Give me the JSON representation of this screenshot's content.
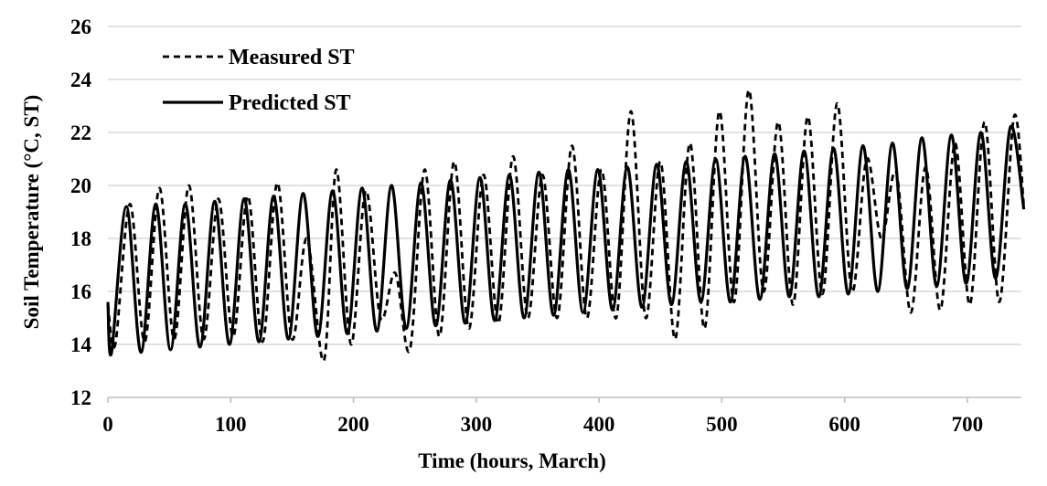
{
  "chart_data": {
    "type": "line",
    "title": "",
    "xlabel": "Time (hours, March)",
    "ylabel": "Soil Temperature (°C, ST)",
    "xlim": [
      0,
      744
    ],
    "ylim": [
      12,
      26
    ],
    "xticks": [
      "0",
      "100",
      "200",
      "300",
      "400",
      "500",
      "600",
      "700"
    ],
    "yticks": [
      "12",
      "14",
      "16",
      "18",
      "20",
      "22",
      "24",
      "26"
    ],
    "grid": "horizontal",
    "legend_position": "top-left",
    "series": [
      {
        "name": "Measured ST",
        "style": "dashed",
        "color": "#000000",
        "points": [
          [
            0,
            15.5
          ],
          [
            6,
            14.0
          ],
          [
            18,
            19.3
          ],
          [
            30,
            14.1
          ],
          [
            42,
            19.9
          ],
          [
            54,
            14.2
          ],
          [
            66,
            20.0
          ],
          [
            78,
            14.2
          ],
          [
            90,
            19.5
          ],
          [
            102,
            14.3
          ],
          [
            114,
            19.6
          ],
          [
            126,
            14.1
          ],
          [
            138,
            20.1
          ],
          [
            150,
            14.2
          ],
          [
            162,
            18.0
          ],
          [
            176,
            13.4
          ],
          [
            186,
            20.6
          ],
          [
            198,
            14.0
          ],
          [
            210,
            19.8
          ],
          [
            222,
            15.0
          ],
          [
            234,
            16.7
          ],
          [
            246,
            13.8
          ],
          [
            258,
            20.6
          ],
          [
            270,
            14.3
          ],
          [
            282,
            20.9
          ],
          [
            294,
            14.6
          ],
          [
            306,
            20.4
          ],
          [
            318,
            14.8
          ],
          [
            330,
            21.1
          ],
          [
            342,
            15.0
          ],
          [
            354,
            20.4
          ],
          [
            366,
            15.0
          ],
          [
            378,
            21.5
          ],
          [
            390,
            15.0
          ],
          [
            402,
            20.6
          ],
          [
            414,
            15.0
          ],
          [
            426,
            22.8
          ],
          [
            438,
            15.0
          ],
          [
            450,
            20.9
          ],
          [
            462,
            14.2
          ],
          [
            474,
            21.6
          ],
          [
            486,
            14.6
          ],
          [
            498,
            22.8
          ],
          [
            510,
            15.6
          ],
          [
            522,
            23.6
          ],
          [
            534,
            16.0
          ],
          [
            546,
            22.4
          ],
          [
            558,
            15.5
          ],
          [
            570,
            22.6
          ],
          [
            582,
            15.9
          ],
          [
            594,
            23.1
          ],
          [
            606,
            16.0
          ],
          [
            618,
            21.0
          ],
          [
            630,
            18.0
          ],
          [
            642,
            20.5
          ],
          [
            654,
            15.2
          ],
          [
            666,
            20.7
          ],
          [
            678,
            15.3
          ],
          [
            690,
            21.6
          ],
          [
            702,
            15.5
          ],
          [
            714,
            22.4
          ],
          [
            726,
            15.6
          ],
          [
            738,
            22.6
          ],
          [
            746,
            19.2
          ]
        ]
      },
      {
        "name": "Predicted ST",
        "style": "solid",
        "color": "#000000",
        "points": [
          [
            0,
            15.6
          ],
          [
            3,
            13.7
          ],
          [
            15,
            19.2
          ],
          [
            27,
            13.7
          ],
          [
            39,
            19.3
          ],
          [
            51,
            13.8
          ],
          [
            63,
            19.3
          ],
          [
            75,
            13.9
          ],
          [
            87,
            19.4
          ],
          [
            99,
            14.0
          ],
          [
            111,
            19.5
          ],
          [
            123,
            14.1
          ],
          [
            135,
            19.6
          ],
          [
            147,
            14.2
          ],
          [
            159,
            19.7
          ],
          [
            171,
            14.3
          ],
          [
            183,
            19.8
          ],
          [
            195,
            14.4
          ],
          [
            207,
            19.9
          ],
          [
            219,
            14.5
          ],
          [
            231,
            20.0
          ],
          [
            243,
            14.6
          ],
          [
            255,
            20.1
          ],
          [
            267,
            14.7
          ],
          [
            279,
            20.2
          ],
          [
            291,
            14.8
          ],
          [
            303,
            20.3
          ],
          [
            315,
            14.9
          ],
          [
            327,
            20.4
          ],
          [
            339,
            15.0
          ],
          [
            351,
            20.5
          ],
          [
            363,
            15.1
          ],
          [
            375,
            20.6
          ],
          [
            387,
            15.2
          ],
          [
            399,
            20.6
          ],
          [
            411,
            15.3
          ],
          [
            423,
            20.7
          ],
          [
            435,
            15.4
          ],
          [
            447,
            20.8
          ],
          [
            459,
            15.5
          ],
          [
            471,
            20.9
          ],
          [
            483,
            15.6
          ],
          [
            495,
            21.0
          ],
          [
            507,
            15.6
          ],
          [
            519,
            21.1
          ],
          [
            531,
            15.7
          ],
          [
            543,
            21.2
          ],
          [
            555,
            15.8
          ],
          [
            567,
            21.3
          ],
          [
            579,
            15.8
          ],
          [
            591,
            21.4
          ],
          [
            603,
            15.9
          ],
          [
            615,
            21.5
          ],
          [
            627,
            16.0
          ],
          [
            639,
            21.6
          ],
          [
            651,
            16.1
          ],
          [
            663,
            21.8
          ],
          [
            675,
            16.2
          ],
          [
            687,
            21.9
          ],
          [
            699,
            16.3
          ],
          [
            711,
            22.0
          ],
          [
            723,
            16.5
          ],
          [
            735,
            22.2
          ],
          [
            746,
            19.1
          ]
        ]
      }
    ]
  }
}
